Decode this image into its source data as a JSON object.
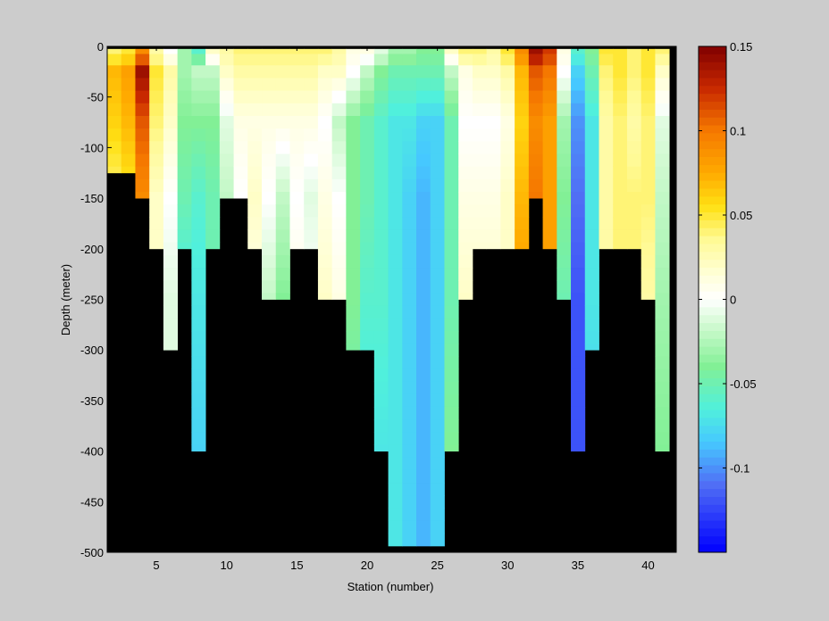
{
  "chart_data": {
    "type": "heatmap",
    "title": "",
    "xlabel": "Station (number)",
    "ylabel": "Depth (meter)",
    "xlim": [
      1.5,
      42
    ],
    "ylim": [
      -500,
      0
    ],
    "x_ticks": [
      5,
      10,
      15,
      20,
      25,
      30,
      35,
      40
    ],
    "y_ticks": [
      0,
      -50,
      -100,
      -150,
      -200,
      -250,
      -300,
      -350,
      -400,
      -450,
      -500
    ],
    "colorbar": {
      "range": [
        -0.15,
        0.15
      ],
      "ticks": [
        0.15,
        0.1,
        0.05,
        0,
        -0.05,
        -0.1
      ],
      "colormap": "jet-white-centered"
    },
    "background_color": "#000000",
    "stations": [
      2,
      3,
      4,
      5,
      6,
      7,
      8,
      9,
      10,
      11,
      12,
      13,
      14,
      15,
      16,
      17,
      18,
      19,
      20,
      21,
      22,
      23,
      24,
      25,
      26,
      27,
      28,
      29,
      30,
      31,
      32,
      33,
      34,
      35,
      36,
      37,
      38,
      39,
      40,
      41
    ],
    "depth_bins": [
      -5,
      -12.5,
      -25,
      -37.5,
      -50,
      -62.5,
      -75,
      -87.5,
      -100,
      -112.5,
      -125,
      -137.5,
      -150,
      -162.5,
      -175,
      -187.5,
      -200,
      -212.5,
      -225,
      -237.5,
      -250,
      -262.5,
      -275,
      -287.5,
      -300,
      -312.5,
      -325,
      -337.5,
      -350,
      -362.5,
      -375,
      -387.5,
      -400,
      -412.5,
      -425,
      -437.5,
      -450,
      -462.5,
      -475,
      -487.5
    ],
    "max_depth": [
      -125,
      -125,
      -150,
      -200,
      -300,
      -200,
      -400,
      -200,
      -150,
      -150,
      -200,
      -250,
      -250,
      -200,
      -200,
      -250,
      -250,
      -300,
      -300,
      -400,
      -500,
      -500,
      -500,
      -500,
      -400,
      -250,
      -200,
      -200,
      -200,
      -200,
      -150,
      -200,
      -250,
      -400,
      -300,
      -200,
      -200,
      -200,
      -250,
      -400
    ],
    "station_profiles": [
      [
        0.04,
        0.07,
        0.06,
        0.04,
        0.02,
        0.02
      ],
      [
        0.05,
        0.08,
        0.07,
        0.05,
        0.03,
        0.03
      ],
      [
        0.09,
        0.14,
        0.11,
        0.09,
        0.07,
        0.06
      ],
      [
        0.03,
        0.05,
        0.04,
        0.02,
        0.02,
        0.01
      ],
      [
        0.0,
        0.03,
        0.02,
        0.0,
        -0.01,
        -0.01
      ],
      [
        -0.03,
        -0.03,
        -0.04,
        -0.05,
        -0.07,
        -0.08
      ],
      [
        -0.06,
        -0.02,
        -0.04,
        -0.06,
        -0.07,
        -0.08
      ],
      [
        0.02,
        -0.02,
        -0.04,
        -0.05,
        -0.05,
        -0.05
      ],
      [
        0.03,
        0.02,
        -0.01,
        -0.02,
        -0.01,
        -0.01
      ],
      [
        0.04,
        0.03,
        0.01,
        0.0,
        0.01,
        0.01
      ],
      [
        0.04,
        0.03,
        0.01,
        0.02,
        0.01,
        -0.03
      ],
      [
        0.04,
        0.03,
        0.01,
        0.0,
        -0.02,
        -0.04
      ],
      [
        0.04,
        0.03,
        0.01,
        -0.02,
        -0.04,
        -0.04
      ],
      [
        0.04,
        0.03,
        0.01,
        0.0,
        0.01,
        0.01
      ],
      [
        0.04,
        0.03,
        0.01,
        -0.01,
        0.0,
        0.01
      ],
      [
        0.04,
        0.02,
        0.0,
        0.01,
        0.02,
        0.01
      ],
      [
        0.03,
        0.02,
        -0.02,
        0.0,
        0.01,
        -0.03
      ],
      [
        0.01,
        0.0,
        -0.04,
        -0.04,
        -0.04,
        -0.05
      ],
      [
        0.01,
        -0.02,
        -0.05,
        -0.05,
        -0.06,
        -0.07
      ],
      [
        -0.01,
        -0.04,
        -0.06,
        -0.06,
        -0.06,
        -0.07
      ],
      [
        -0.03,
        -0.05,
        -0.07,
        -0.07,
        -0.07,
        -0.07
      ],
      [
        -0.03,
        -0.05,
        -0.07,
        -0.08,
        -0.08,
        -0.08
      ],
      [
        -0.04,
        -0.05,
        -0.08,
        -0.09,
        -0.09,
        -0.09
      ],
      [
        -0.04,
        -0.05,
        -0.08,
        -0.08,
        -0.08,
        -0.08
      ],
      [
        0.02,
        -0.02,
        -0.05,
        -0.05,
        -0.05,
        -0.04
      ],
      [
        0.04,
        0.01,
        0.0,
        0.01,
        0.02,
        0.02
      ],
      [
        0.04,
        0.02,
        0.0,
        0.01,
        0.02,
        0.02
      ],
      [
        0.03,
        0.02,
        0.0,
        0.01,
        0.02,
        0.02
      ],
      [
        0.05,
        0.03,
        0.01,
        0.02,
        0.02,
        0.02
      ],
      [
        0.09,
        0.07,
        0.06,
        0.07,
        0.08,
        0.08
      ],
      [
        0.14,
        0.11,
        0.09,
        0.1,
        0.11,
        0.11
      ],
      [
        0.12,
        0.1,
        0.08,
        0.08,
        0.08,
        0.07
      ],
      [
        0.01,
        0.0,
        -0.03,
        -0.04,
        -0.05,
        -0.05
      ],
      [
        -0.06,
        -0.08,
        -0.1,
        -0.11,
        -0.12,
        -0.12
      ],
      [
        -0.04,
        -0.05,
        -0.07,
        -0.07,
        -0.07,
        -0.08
      ],
      [
        0.05,
        0.04,
        0.03,
        0.03,
        0.03,
        0.03
      ],
      [
        0.05,
        0.05,
        0.04,
        0.04,
        0.04,
        0.04
      ],
      [
        0.04,
        0.04,
        0.03,
        0.04,
        0.04,
        0.04
      ],
      [
        0.05,
        0.05,
        0.04,
        0.04,
        0.03,
        0.03
      ],
      [
        0.04,
        0.02,
        -0.01,
        -0.02,
        -0.03,
        -0.04
      ]
    ]
  }
}
